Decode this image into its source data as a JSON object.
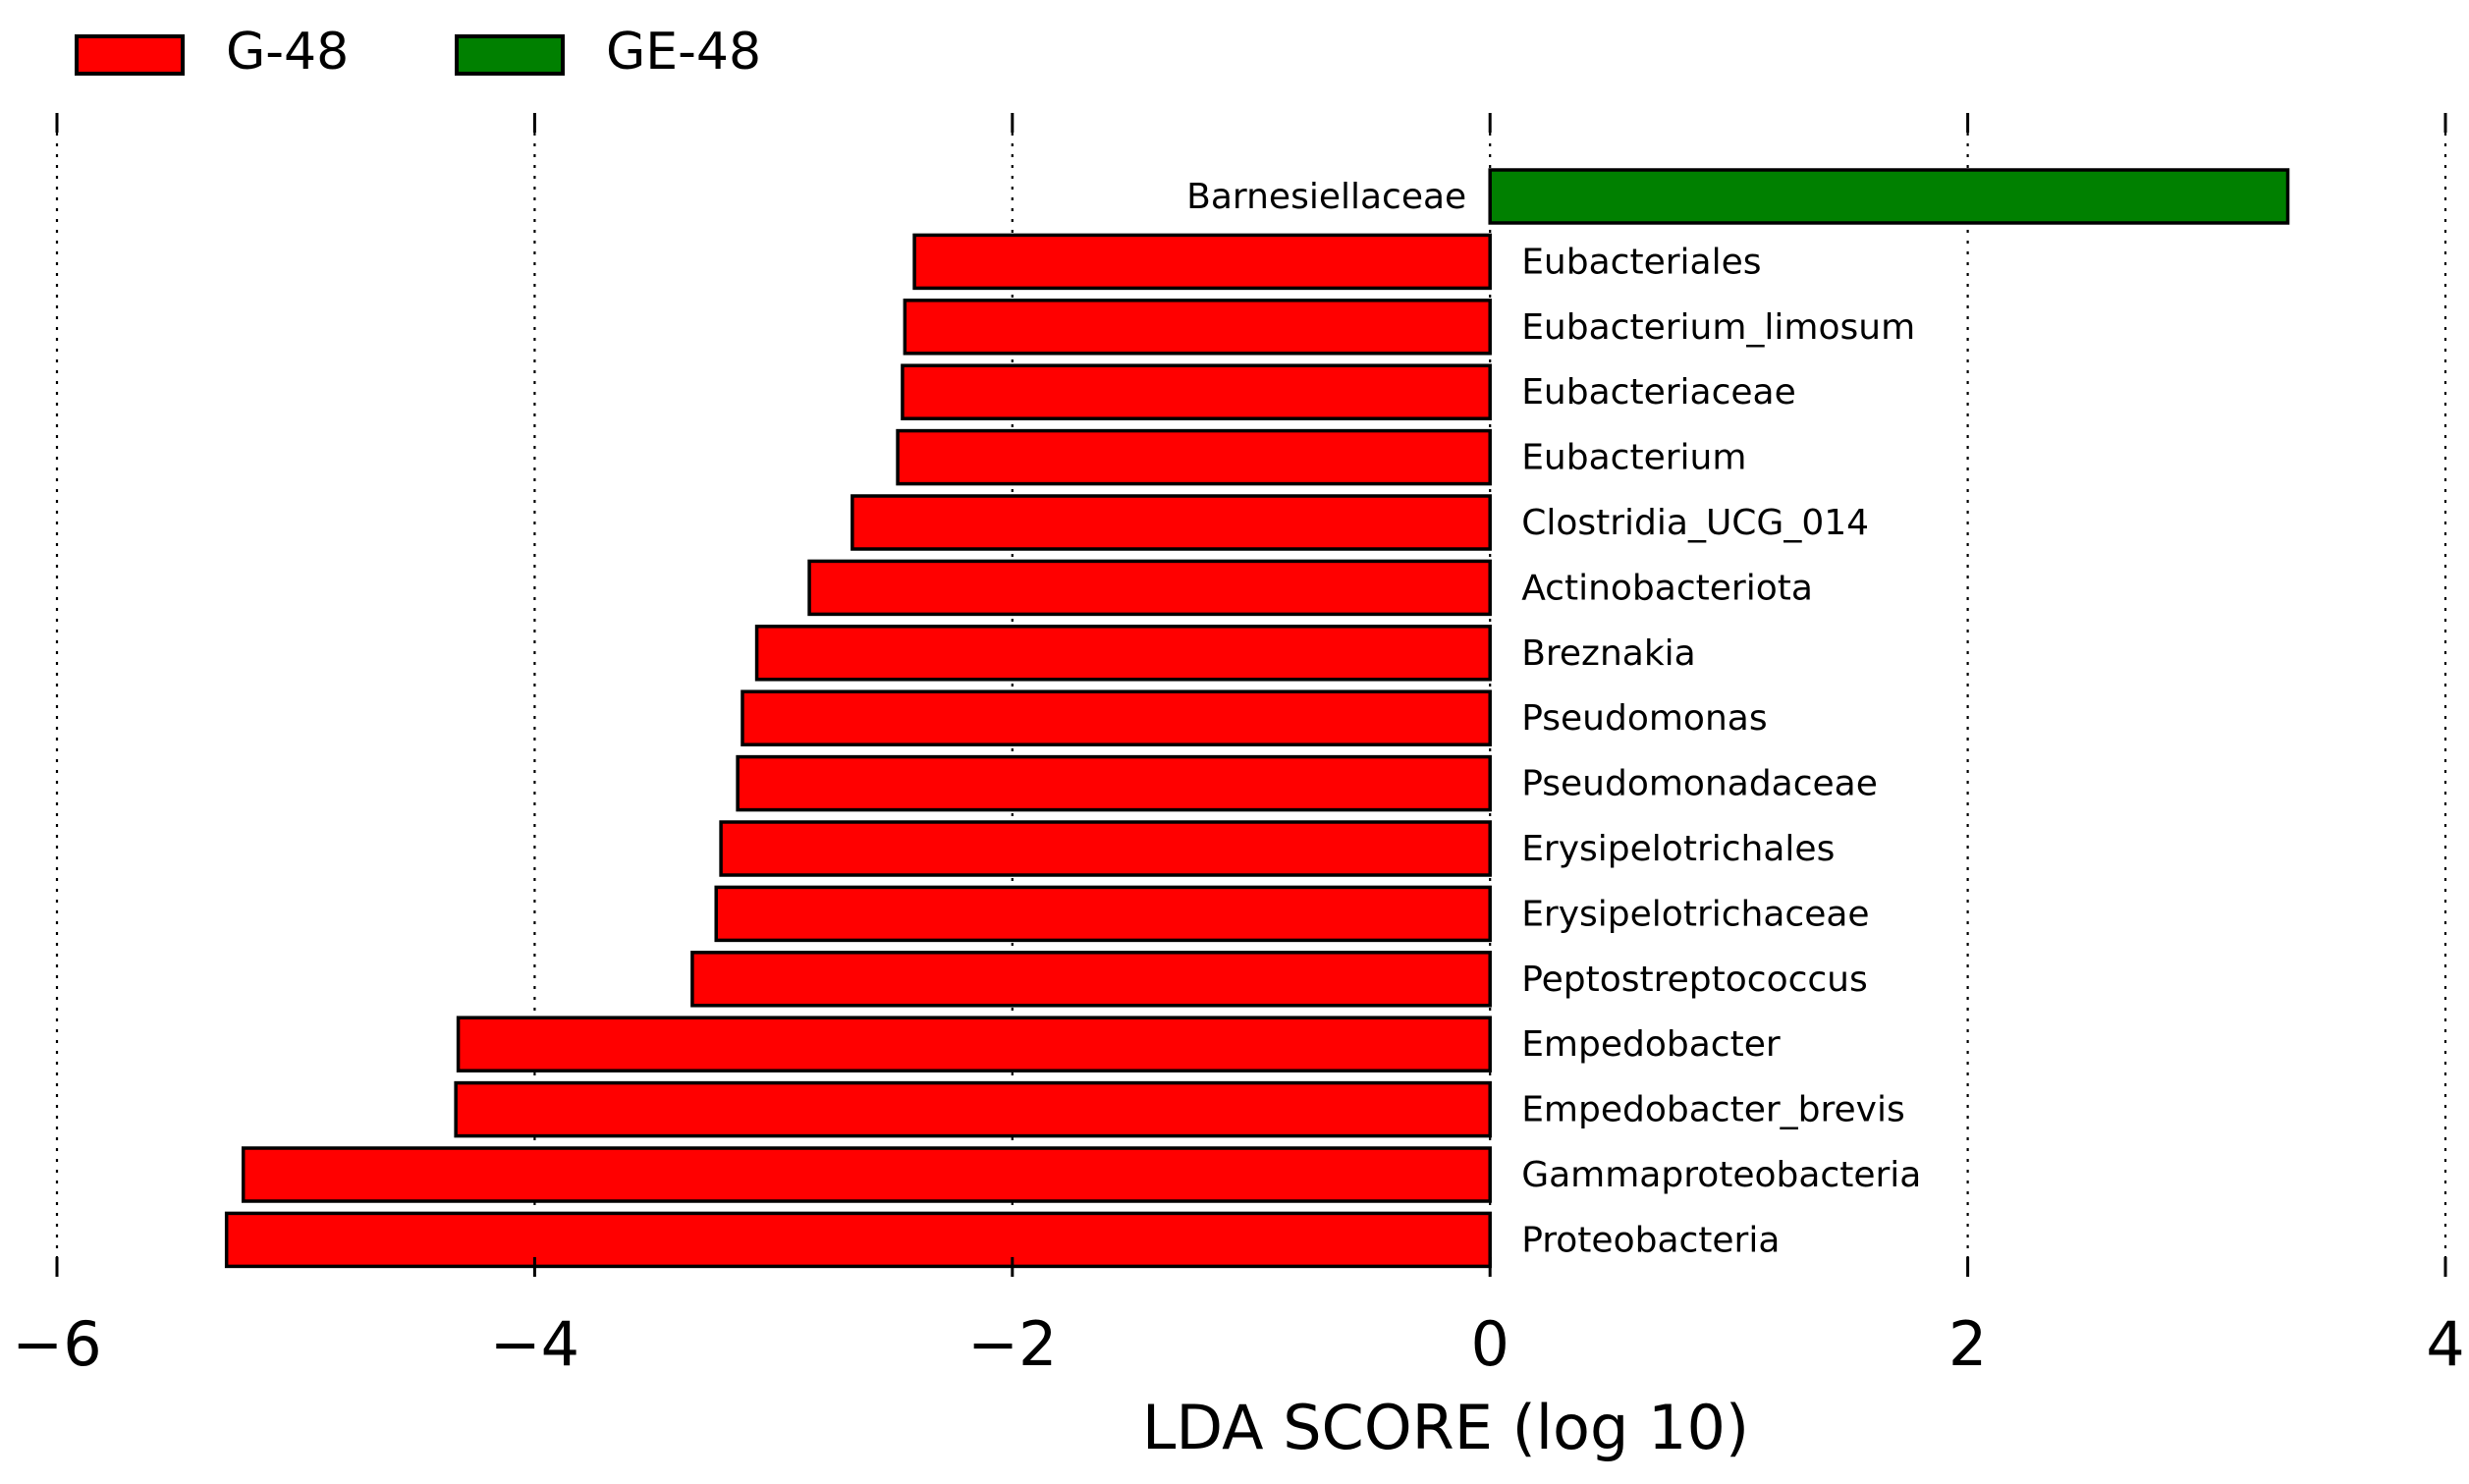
{
  "chart_data": {
    "type": "bar",
    "orientation": "horizontal",
    "title": "",
    "xlabel": "LDA SCORE (log 10)",
    "ylabel": "",
    "xlim": [
      -6,
      4
    ],
    "xticks": [
      -6,
      -4,
      -2,
      0,
      2,
      4
    ],
    "xtick_labels": [
      "−6",
      "−4",
      "−2",
      "0",
      "2",
      "4"
    ],
    "grid": true,
    "legend_position": "top-left",
    "legend": [
      {
        "name": "G-48",
        "color": "#ff0000"
      },
      {
        "name": "GE-48",
        "color": "#008000"
      }
    ],
    "series": [
      {
        "name": "GE-48",
        "color": "#008000",
        "categories": [
          "Barnesiellaceae"
        ],
        "values": [
          3.34
        ]
      },
      {
        "name": "G-48",
        "color": "#ff0000",
        "categories": [
          "Eubacteriales",
          "Eubacterium_limosum",
          "Eubacteriaceae",
          "Eubacterium",
          "Clostridia_UCG_014",
          "Actinobacteriota",
          "Breznakia",
          "Pseudomonas",
          "Pseudomonadaceae",
          "Erysipelotrichales",
          "Erysipelotrichaceae",
          "Peptostreptococcus",
          "Empedobacter",
          "Empedobacter_brevis",
          "Gammaproteobacteria",
          "Proteobacteria"
        ],
        "values": [
          -2.41,
          -2.45,
          -2.46,
          -2.48,
          -2.67,
          -2.85,
          -3.07,
          -3.13,
          -3.15,
          -3.22,
          -3.24,
          -3.34,
          -4.32,
          -4.33,
          -5.22,
          -5.29
        ]
      }
    ]
  }
}
